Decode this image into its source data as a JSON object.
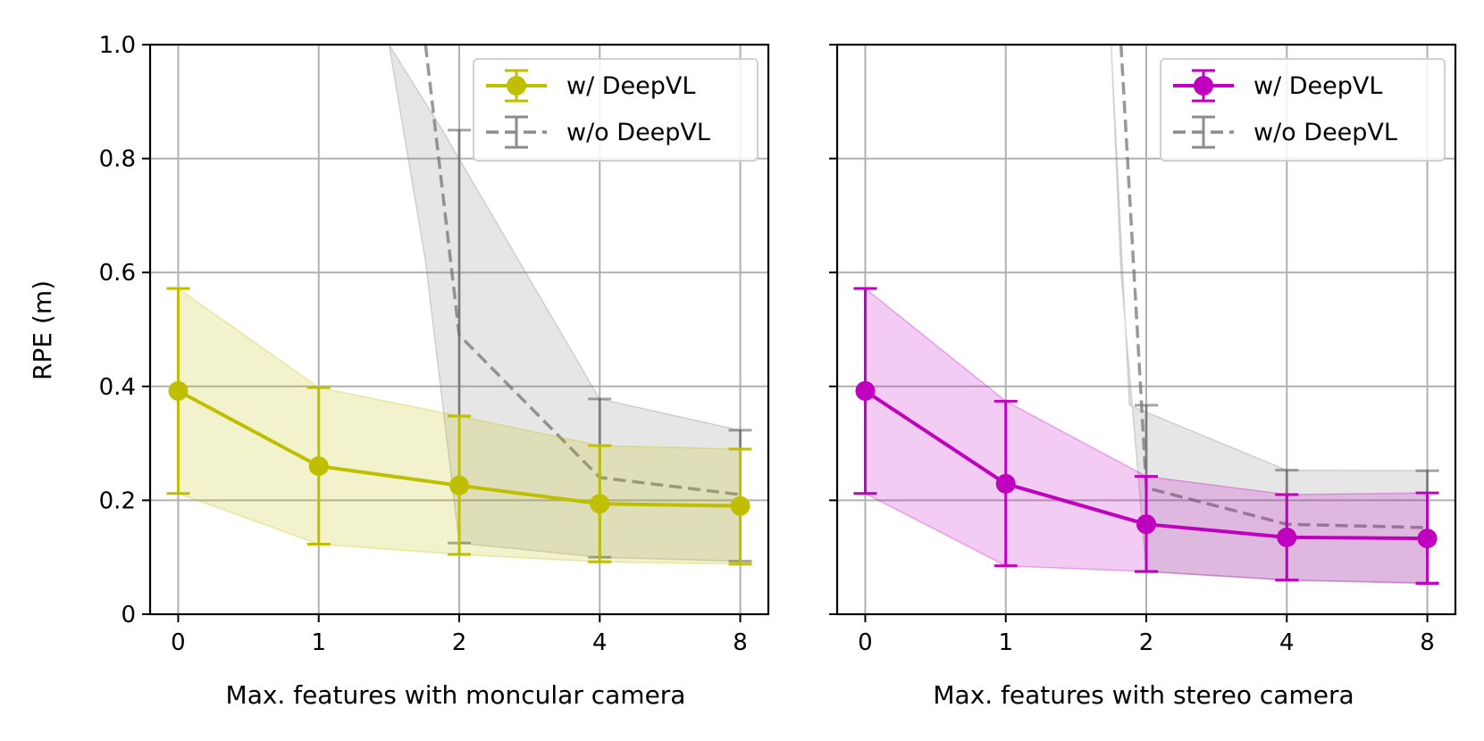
{
  "chart_data": [
    {
      "type": "line",
      "title": "",
      "xlabel": "Max. features with moncular camera",
      "ylabel": "RPE (m)",
      "categories": [
        "0",
        "1",
        "2",
        "4",
        "8"
      ],
      "ylim": [
        0,
        1.0
      ],
      "yticks": [
        "0",
        "0.2",
        "0.4",
        "0.6",
        "0.8",
        "1.0"
      ],
      "grid": true,
      "legend_position": "top-right",
      "series": [
        {
          "name": "w/ DeepVL",
          "color": "#bfbf00",
          "style": "solid-markers",
          "values": [
            0.392,
            0.26,
            0.226,
            0.194,
            0.19
          ],
          "err_low": [
            0.212,
            0.123,
            0.105,
            0.092,
            0.088
          ],
          "err_high": [
            0.572,
            0.398,
            0.348,
            0.296,
            0.29
          ],
          "band_low": [
            0.212,
            0.123,
            0.105,
            0.092,
            0.088
          ],
          "band_high": [
            0.572,
            0.398,
            0.348,
            0.296,
            0.29
          ]
        },
        {
          "name": "w/o DeepVL",
          "color": "#808080",
          "style": "dashed",
          "x": [
            1.76,
            2,
            3,
            4
          ],
          "values": [
            1.0,
            0.49,
            0.24,
            0.21
          ],
          "err_low": [
            null,
            0.125,
            0.1,
            0.093
          ],
          "err_high": [
            null,
            0.85,
            0.378,
            0.323
          ],
          "band_low": [
            0.62,
            0.125,
            0.1,
            0.093
          ],
          "band_high": [
            1.0,
            0.85,
            0.378,
            0.323
          ],
          "band_x_top": [
            1.5,
            1.88,
            3,
            4
          ]
        }
      ]
    },
    {
      "type": "line",
      "title": "",
      "xlabel": "Max. features with stereo camera",
      "ylabel": "",
      "categories": [
        "0",
        "1",
        "2",
        "4",
        "8"
      ],
      "ylim": [
        0,
        1.0
      ],
      "grid": true,
      "legend_position": "top-right",
      "series": [
        {
          "name": "w/ DeepVL",
          "color": "#bf00bf",
          "style": "solid-markers",
          "values": [
            0.392,
            0.229,
            0.158,
            0.135,
            0.133
          ],
          "err_low": [
            0.212,
            0.085,
            0.075,
            0.06,
            0.054
          ],
          "err_high": [
            0.572,
            0.374,
            0.242,
            0.21,
            0.213
          ],
          "band_low": [
            0.212,
            0.085,
            0.075,
            0.06,
            0.054
          ],
          "band_high": [
            0.572,
            0.374,
            0.242,
            0.21,
            0.213
          ]
        },
        {
          "name": "w/o DeepVL",
          "color": "#808080",
          "style": "dashed",
          "x": [
            1.82,
            2,
            3,
            4
          ],
          "values": [
            1.0,
            0.222,
            0.158,
            0.152
          ],
          "err_low": [
            null,
            0.075,
            0.06,
            0.055
          ],
          "err_high": [
            null,
            0.367,
            0.253,
            0.252
          ],
          "band_low": [
            0.6,
            0.075,
            0.06,
            0.055
          ],
          "band_high": [
            1.0,
            0.367,
            0.253,
            0.252
          ],
          "band_x_top": [
            1.75,
            1.88,
            3,
            4
          ]
        }
      ]
    }
  ]
}
